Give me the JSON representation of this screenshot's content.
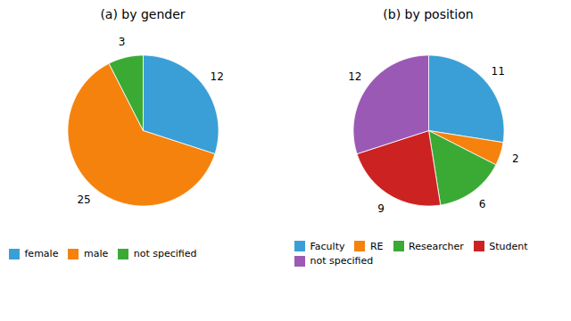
{
  "chart_data": [
    {
      "type": "pie",
      "title": "(a) by gender",
      "categories": [
        "female",
        "male",
        "not specified"
      ],
      "values": [
        12,
        25,
        3
      ],
      "colors": [
        "#3a9fd6",
        "#f5820d",
        "#3aaa35"
      ],
      "data_labels": true,
      "legend": "lower left"
    },
    {
      "type": "pie",
      "title": "(b) by position",
      "categories": [
        "Faculty",
        "RE",
        "Researcher",
        "Student",
        "not specified"
      ],
      "values": [
        11,
        2,
        6,
        9,
        12
      ],
      "colors": [
        "#3a9fd6",
        "#f5820d",
        "#3aaa35",
        "#cc2222",
        "#9b59b6"
      ],
      "data_labels": true,
      "legend": "lower left"
    }
  ]
}
